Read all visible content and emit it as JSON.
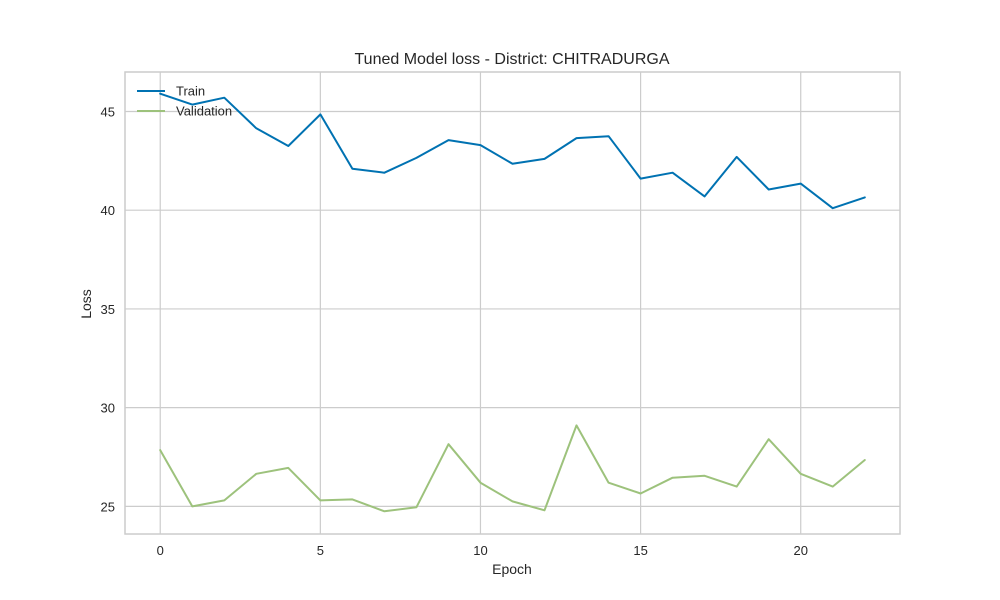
{
  "chart_data": {
    "type": "line",
    "title": "Tuned Model loss - District: CHITRADURGA",
    "xlabel": "Epoch",
    "ylabel": "Loss",
    "xlim": [
      -1.1,
      23.1
    ],
    "ylim": [
      23.6,
      47.0
    ],
    "xticks": [
      0,
      5,
      10,
      15,
      20
    ],
    "yticks": [
      25,
      30,
      35,
      40,
      45
    ],
    "grid": true,
    "legend_position": "top-left",
    "x": [
      0,
      1,
      2,
      3,
      4,
      5,
      6,
      7,
      8,
      9,
      10,
      11,
      12,
      13,
      14,
      15,
      16,
      17,
      18,
      19,
      20,
      21,
      22
    ],
    "series": [
      {
        "name": "Train",
        "color": "#0072b2",
        "values": [
          45.9,
          45.35,
          45.7,
          44.15,
          43.25,
          44.85,
          42.1,
          41.9,
          42.65,
          43.55,
          43.3,
          42.35,
          42.6,
          43.65,
          43.75,
          41.6,
          41.9,
          40.7,
          42.7,
          41.05,
          41.35,
          40.1,
          40.65
        ]
      },
      {
        "name": "Validation",
        "color": "#9dc27c",
        "values": [
          27.85,
          25.0,
          25.3,
          26.65,
          26.95,
          25.3,
          25.35,
          24.75,
          24.95,
          28.15,
          26.2,
          25.25,
          24.8,
          29.1,
          26.2,
          25.65,
          26.45,
          26.55,
          26.0,
          28.4,
          26.65,
          26.0,
          27.35
        ]
      }
    ]
  }
}
